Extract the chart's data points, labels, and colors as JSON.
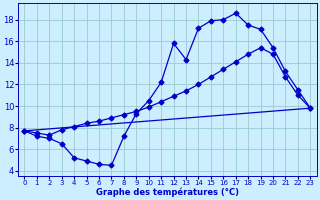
{
  "xlabel": "Graphe des températures (°C)",
  "bg_color": "#cceeff",
  "line_color": "#0000cc",
  "grid_color": "#99cccc",
  "xlim": [
    -0.5,
    23.5
  ],
  "ylim": [
    3.5,
    19.5
  ],
  "yticks": [
    4,
    6,
    8,
    10,
    12,
    14,
    16,
    18
  ],
  "xticks": [
    0,
    1,
    2,
    3,
    4,
    5,
    6,
    7,
    8,
    9,
    10,
    11,
    12,
    13,
    14,
    15,
    16,
    17,
    18,
    19,
    20,
    21,
    22,
    23
  ],
  "line1_x": [
    0,
    1,
    2,
    3,
    4,
    5,
    6,
    7,
    8,
    9,
    10,
    11,
    12,
    13,
    14,
    15,
    16,
    17,
    18,
    19,
    20,
    21,
    22,
    23
  ],
  "line1_y": [
    7.7,
    7.2,
    7.0,
    6.5,
    5.2,
    4.9,
    4.6,
    4.5,
    7.2,
    9.3,
    10.5,
    12.2,
    15.8,
    14.3,
    17.2,
    17.9,
    18.0,
    18.6,
    17.5,
    17.1,
    15.4,
    13.2,
    11.5,
    9.8
  ],
  "line2_x": [
    0,
    1,
    2,
    3,
    4,
    5,
    6,
    7,
    8,
    9,
    10,
    11,
    12,
    13,
    14,
    15,
    16,
    17,
    18,
    19,
    20,
    21,
    22,
    23
  ],
  "line2_y": [
    7.7,
    7.5,
    7.3,
    7.8,
    8.1,
    8.4,
    8.6,
    8.9,
    9.2,
    9.5,
    9.9,
    10.4,
    10.9,
    11.4,
    12.0,
    12.7,
    13.4,
    14.1,
    14.8,
    15.4,
    14.8,
    12.7,
    11.0,
    9.8
  ],
  "line3_x": [
    0,
    23
  ],
  "line3_y": [
    7.7,
    9.8
  ],
  "marker": "D",
  "markersize": 2.5,
  "xlabel_fontsize": 6.0,
  "tick_fontsize": 5.0
}
